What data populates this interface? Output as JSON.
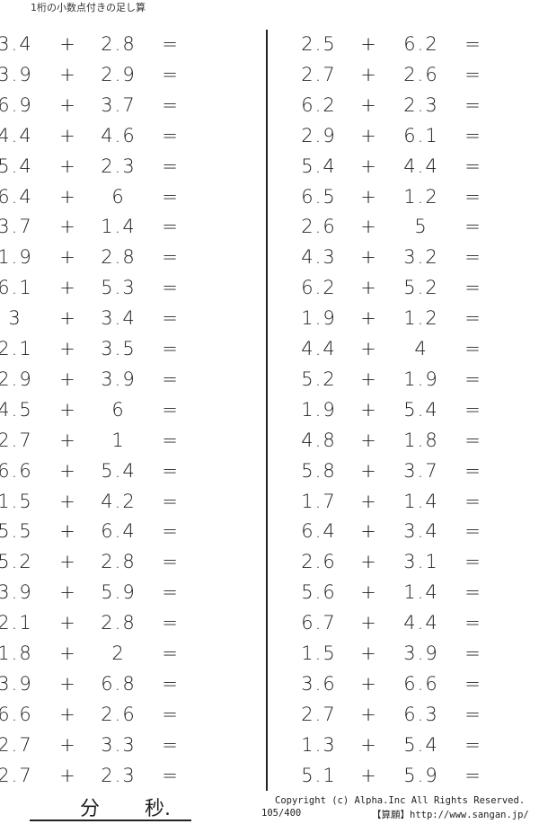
{
  "title": "1桁の小数点付きの足し算",
  "operator": "+",
  "equals": "=",
  "left_problems": [
    [
      "3.4",
      "2.8"
    ],
    [
      "3.9",
      "2.9"
    ],
    [
      "6.9",
      "3.7"
    ],
    [
      "4.4",
      "4.6"
    ],
    [
      "5.4",
      "2.3"
    ],
    [
      "6.4",
      "6"
    ],
    [
      "3.7",
      "1.4"
    ],
    [
      "1.9",
      "2.8"
    ],
    [
      "6.1",
      "5.3"
    ],
    [
      "3",
      "3.4"
    ],
    [
      "2.1",
      "3.5"
    ],
    [
      "2.9",
      "3.9"
    ],
    [
      "4.5",
      "6"
    ],
    [
      "2.7",
      "1"
    ],
    [
      "6.6",
      "5.4"
    ],
    [
      "1.5",
      "4.2"
    ],
    [
      "5.5",
      "6.4"
    ],
    [
      "5.2",
      "2.8"
    ],
    [
      "3.9",
      "5.9"
    ],
    [
      "2.1",
      "2.8"
    ],
    [
      "1.8",
      "2"
    ],
    [
      "3.9",
      "6.8"
    ],
    [
      "6.6",
      "2.6"
    ],
    [
      "2.7",
      "3.3"
    ],
    [
      "2.7",
      "2.3"
    ]
  ],
  "right_problems": [
    [
      "2.5",
      "6.2"
    ],
    [
      "2.7",
      "2.6"
    ],
    [
      "6.2",
      "2.3"
    ],
    [
      "2.9",
      "6.1"
    ],
    [
      "5.4",
      "4.4"
    ],
    [
      "6.5",
      "1.2"
    ],
    [
      "2.6",
      "5"
    ],
    [
      "4.3",
      "3.2"
    ],
    [
      "6.2",
      "5.2"
    ],
    [
      "1.9",
      "1.2"
    ],
    [
      "4.4",
      "4"
    ],
    [
      "5.2",
      "1.9"
    ],
    [
      "1.9",
      "5.4"
    ],
    [
      "4.8",
      "1.8"
    ],
    [
      "5.8",
      "3.7"
    ],
    [
      "1.7",
      "1.4"
    ],
    [
      "6.4",
      "3.4"
    ],
    [
      "2.6",
      "3.1"
    ],
    [
      "5.6",
      "1.4"
    ],
    [
      "6.7",
      "4.4"
    ],
    [
      "1.5",
      "3.9"
    ],
    [
      "3.6",
      "6.6"
    ],
    [
      "2.7",
      "6.3"
    ],
    [
      "1.3",
      "5.4"
    ],
    [
      "5.1",
      "5.9"
    ]
  ],
  "footer": {
    "minutes_label": "分",
    "seconds_label": "秒.",
    "copyright": "Copyright (c)  Alpha.Inc All Rights Reserved.",
    "page_number": "105/400",
    "site": "【算願】http://www.sangan.jp/"
  }
}
